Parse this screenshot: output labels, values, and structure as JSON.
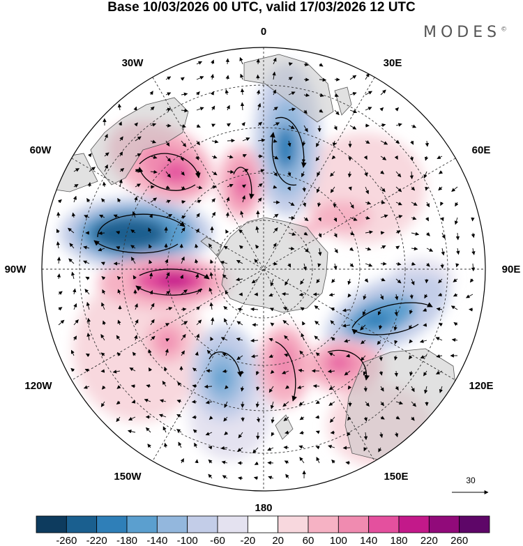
{
  "title": "Base 10/03/2026 00 UTC, valid 17/03/2026 12 UTC",
  "logo": "MODES",
  "logo_mark": "©",
  "longitude_labels": {
    "lon_0": "0",
    "lon_30E": "30E",
    "lon_60E": "60E",
    "lon_90E": "90E",
    "lon_120E": "120E",
    "lon_150E": "150E",
    "lon_180": "180",
    "lon_150W": "150W",
    "lon_120W": "120W",
    "lon_90W": "90W",
    "lon_60W": "60W",
    "lon_30W": "30W"
  },
  "reference_vector": {
    "label": "30"
  },
  "colorbar": {
    "ticks": [
      "-260",
      "-220",
      "-180",
      "-140",
      "-100",
      "-60",
      "-20",
      "20",
      "60",
      "100",
      "140",
      "180",
      "220",
      "260"
    ],
    "colors": [
      "#0d3b5e",
      "#1a5f8f",
      "#2f7fb8",
      "#5b9fcf",
      "#93b7dd",
      "#c3cde8",
      "#e4e2f0",
      "#ffffff",
      "#f8d8de",
      "#f6b2c4",
      "#f08bb0",
      "#e4509e",
      "#c3198a",
      "#910a7a",
      "#5e0668"
    ]
  }
}
